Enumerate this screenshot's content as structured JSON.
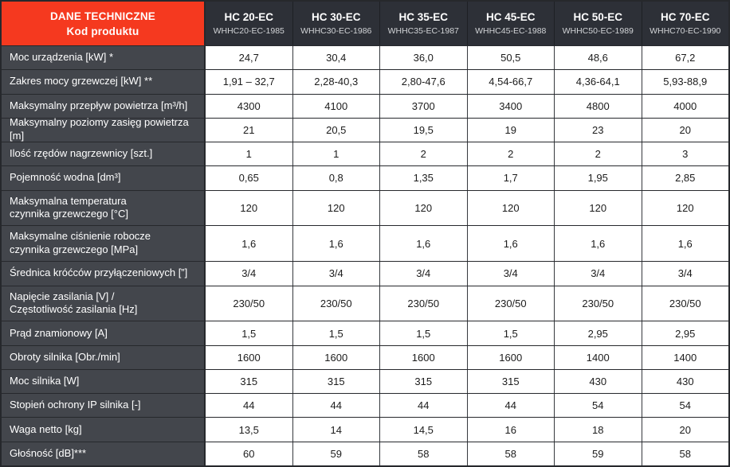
{
  "header": {
    "title_line1": "DANE TECHNICZNE",
    "title_line2": "Kod produktu",
    "columns": [
      {
        "model": "HC 20-EC",
        "code": "WHHC20-EC-1985"
      },
      {
        "model": "HC 30-EC",
        "code": "WHHC30-EC-1986"
      },
      {
        "model": "HC 35-EC",
        "code": "WHHC35-EC-1987"
      },
      {
        "model": "HC 45-EC",
        "code": "WHHC45-EC-1988"
      },
      {
        "model": "HC 50-EC",
        "code": "WHHC50-EC-1989"
      },
      {
        "model": "HC 70-EC",
        "code": "WHHC70-EC-1990"
      }
    ]
  },
  "rows": [
    {
      "label": "Moc urządzenia [kW] *",
      "values": [
        "24,7",
        "30,4",
        "36,0",
        "50,5",
        "48,6",
        "67,2"
      ]
    },
    {
      "label": "Zakres mocy grzewczej [kW] **",
      "values": [
        "1,91 – 32,7",
        "2,28-40,3",
        "2,80-47,6",
        "4,54-66,7",
        "4,36-64,1",
        "5,93-88,9"
      ]
    },
    {
      "label": "Maksymalny przepływ powietrza [m³/h]",
      "values": [
        "4300",
        "4100",
        "3700",
        "3400",
        "4800",
        "4000"
      ]
    },
    {
      "label": "Maksymalny poziomy zasięg powietrza [m]",
      "values": [
        "21",
        "20,5",
        "19,5",
        "19",
        "23",
        "20"
      ]
    },
    {
      "label": "Ilość rzędów nagrzewnicy [szt.]",
      "values": [
        "1",
        "1",
        "2",
        "2",
        "2",
        "3"
      ]
    },
    {
      "label": "Pojemność wodna [dm³]",
      "values": [
        "0,65",
        "0,8",
        "1,35",
        "1,7",
        "1,95",
        "2,85"
      ]
    },
    {
      "label": "Maksymalna temperatura\nczynnika grzewczego [°C]",
      "values": [
        "120",
        "120",
        "120",
        "120",
        "120",
        "120"
      ]
    },
    {
      "label": "Maksymalne ciśnienie robocze\nczynnika grzewczego [MPa]",
      "values": [
        "1,6",
        "1,6",
        "1,6",
        "1,6",
        "1,6",
        "1,6"
      ]
    },
    {
      "label": "Średnica króćców przyłączeniowych [”]",
      "values": [
        "3/4",
        "3/4",
        "3/4",
        "3/4",
        "3/4",
        "3/4"
      ]
    },
    {
      "label": "Napięcie zasilania [V] /\nCzęstotliwość zasilania [Hz]",
      "values": [
        "230/50",
        "230/50",
        "230/50",
        "230/50",
        "230/50",
        "230/50"
      ]
    },
    {
      "label": "Prąd znamionowy [A]",
      "values": [
        "1,5",
        "1,5",
        "1,5",
        "1,5",
        "2,95",
        "2,95"
      ]
    },
    {
      "label": "Obroty silnika [Obr./min]",
      "values": [
        "1600",
        "1600",
        "1600",
        "1600",
        "1400",
        "1400"
      ]
    },
    {
      "label": "Moc silnika [W]",
      "values": [
        "315",
        "315",
        "315",
        "315",
        "430",
        "430"
      ]
    },
    {
      "label": "Stopień ochrony IP silnika [-]",
      "values": [
        "44",
        "44",
        "44",
        "44",
        "54",
        "54"
      ]
    },
    {
      "label": "Waga netto [kg]",
      "values": [
        "13,5",
        "14",
        "14,5",
        "16",
        "18",
        "20"
      ]
    },
    {
      "label": "Głośność [dB]***",
      "values": [
        "60",
        "59",
        "58",
        "58",
        "59",
        "58"
      ]
    }
  ],
  "colors": {
    "accent_red": "#f5391f",
    "header_dark": "#2d3037",
    "label_dark": "#43464c",
    "grid_line": "#26282c",
    "cell_bg": "#ffffff",
    "text_dark": "#1c1c1c",
    "subcode_text": "#d2d4d7"
  }
}
